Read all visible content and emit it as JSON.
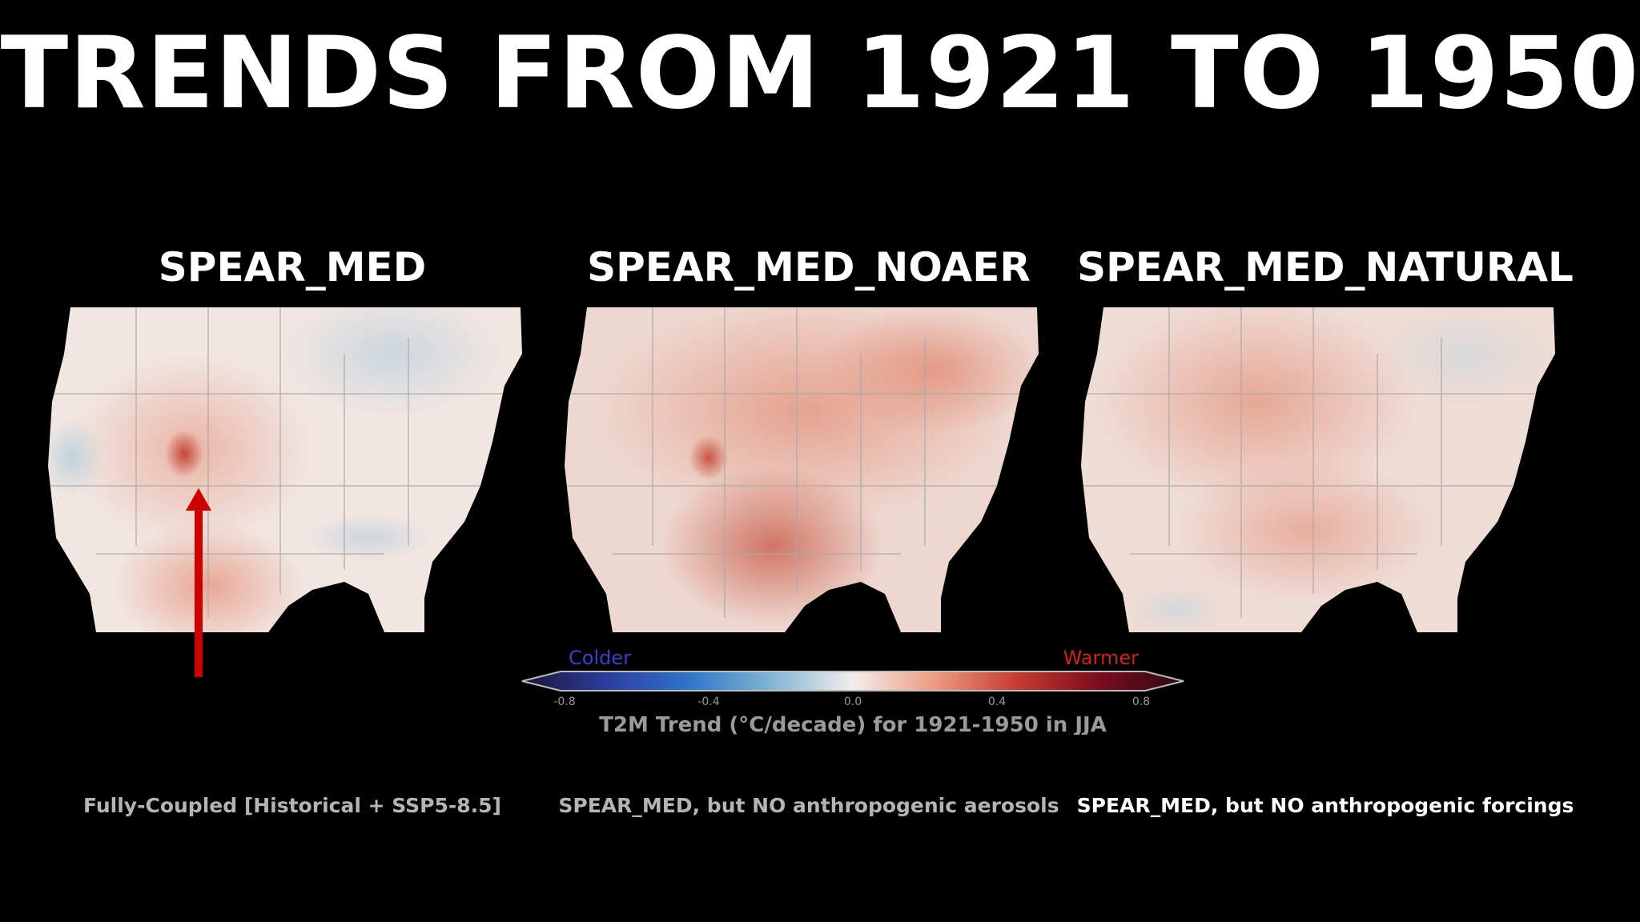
{
  "title": "TRENDS FROM 1921 TO 1950",
  "panels": [
    {
      "title": "SPEAR_MED",
      "caption": "Fully-Coupled [Historical + SSP5-8.5]"
    },
    {
      "title": "SPEAR_MED_NOAER",
      "caption": "SPEAR_MED, but NO anthropogenic aerosols"
    },
    {
      "title": "SPEAR_MED_NATURAL",
      "caption": "SPEAR_MED, but NO anthropogenic forcings"
    }
  ],
  "colorbar": {
    "colder_label": "Colder",
    "warmer_label": "Warmer",
    "ticks": [
      "-0.8",
      "-0.4",
      "0.0",
      "0.4",
      "0.8"
    ],
    "label": "T2M Trend (°C/decade) for 1921-1950 in JJA",
    "colors": [
      "#1a1638",
      "#2c3c9c",
      "#2f74c8",
      "#7fb4d4",
      "#f2eeec",
      "#ee9a80",
      "#c43a2e",
      "#7a0c1e",
      "#2a0a10"
    ],
    "colder_color": "#3a3fd0",
    "warmer_color": "#d21f1f"
  },
  "annotation": {
    "arrow_color": "#cc0000"
  }
}
